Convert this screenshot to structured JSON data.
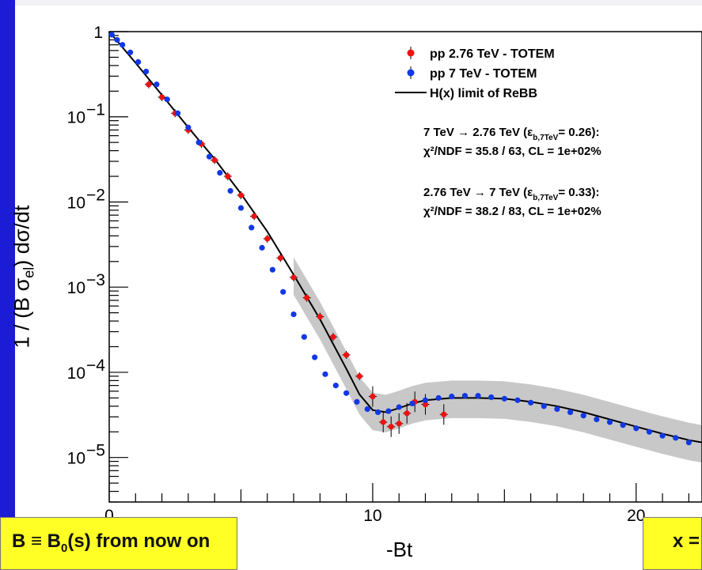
{
  "colors": {
    "slide_bar": "#1c1cd6",
    "note_bg": "#ffff26",
    "series_red": "#ee1111",
    "series_blue": "#1238e6",
    "band_gray": "#c8c8c8"
  },
  "annotations": {
    "b_definition": "B  ≡ B",
    "b_sub": "0",
    "b_rest": "(s)  from now on",
    "x_def": "x ="
  },
  "chart_data": {
    "type": "scatter",
    "ylabel_main": "1 / (B σ",
    "ylabel_sub": "el",
    "ylabel_end": ")  dσ/dt",
    "xlabel": "-Bt",
    "x_scale": "linear",
    "y_scale": "log",
    "xlim": [
      0,
      22.5
    ],
    "ylim": [
      3e-06,
      1
    ],
    "x_ticks": [
      {
        "value": 0,
        "label": "0"
      },
      {
        "value": 10,
        "label": "10"
      },
      {
        "value": 20,
        "label": "20"
      }
    ],
    "y_ticks": [
      {
        "value": 1,
        "label": "1"
      },
      {
        "value": 0.1,
        "label": "10",
        "exp": "−1"
      },
      {
        "value": 0.01,
        "label": "10",
        "exp": "−2"
      },
      {
        "value": 0.001,
        "label": "10",
        "exp": "−3"
      },
      {
        "value": 0.0001,
        "label": "10",
        "exp": "−4"
      },
      {
        "value": 1e-05,
        "label": "10",
        "exp": "−5"
      }
    ],
    "legend": [
      {
        "label": "pp 2.76 TeV - TOTEM",
        "color": "#ee1111",
        "marker": "point"
      },
      {
        "label": "pp 7 TeV - TOTEM",
        "color": "#1238e6",
        "marker": "point"
      },
      {
        "label": "H(x) limit of ReBB",
        "color": "#000000",
        "marker": "line"
      }
    ],
    "fit_text": [
      {
        "line1_a": "7 TeV → 2.76 TeV  (ε",
        "line1_sub": "b,7TeV",
        "line1_b": "= 0.26):",
        "line2": "χ²/NDF = 35.8 / 63,  CL = 1e+02%"
      },
      {
        "line1_a": "2.76 TeV → 7 TeV  (ε",
        "line1_sub": "b,7TeV",
        "line1_b": "= 0.33):",
        "line2": "χ²/NDF = 38.2 / 83,  CL = 1e+02%"
      }
    ],
    "curve": {
      "name": "H(x) limit of ReBB",
      "x": [
        0,
        1,
        2,
        3,
        4,
        5,
        6,
        7,
        8,
        9,
        9.5,
        10,
        10.5,
        11,
        11.5,
        12,
        13,
        14,
        15,
        16,
        17,
        18,
        19,
        20,
        21,
        22,
        22.5
      ],
      "y": [
        1.0,
        0.43,
        0.18,
        0.075,
        0.032,
        0.0125,
        0.0045,
        0.0014,
        0.00042,
        0.00011,
        5.5e-05,
        3.6e-05,
        3.4e-05,
        3.8e-05,
        4.3e-05,
        4.7e-05,
        5e-05,
        5e-05,
        4.9e-05,
        4.5e-05,
        4e-05,
        3.4e-05,
        2.8e-05,
        2.3e-05,
        1.9e-05,
        1.6e-05,
        1.5e-05
      ]
    },
    "band_relative_width": 0.6,
    "series": [
      {
        "name": "pp 2.76 TeV - TOTEM",
        "color": "#ee1111",
        "x": [
          1.5,
          2.0,
          2.5,
          3.0,
          3.5,
          4.0,
          4.5,
          5.0,
          5.5,
          6.0,
          6.5,
          7.0,
          7.5,
          8.0,
          8.5,
          9.0,
          9.5,
          10.0,
          10.4,
          10.7,
          11.0,
          11.3,
          11.6,
          12.0,
          12.7
        ],
        "y": [
          0.24,
          0.17,
          0.11,
          0.07,
          0.048,
          0.031,
          0.02,
          0.012,
          0.0068,
          0.0037,
          0.0022,
          0.0013,
          0.00075,
          0.00045,
          0.00026,
          0.00016,
          9e-05,
          5.2e-05,
          2.6e-05,
          2.3e-05,
          2.5e-05,
          3.3e-05,
          4.5e-05,
          4.2e-05,
          3.2e-05
        ]
      },
      {
        "name": "pp 7 TeV - TOTEM",
        "color": "#1238e6",
        "x": [
          0.1,
          0.3,
          0.5,
          0.8,
          1.1,
          1.4,
          1.8,
          2.2,
          2.6,
          3.0,
          3.4,
          3.8,
          4.2,
          4.6,
          5.0,
          5.4,
          5.8,
          6.2,
          6.6,
          7.0,
          7.4,
          7.8,
          8.2,
          8.6,
          9.0,
          9.4,
          9.8,
          10.2,
          10.6,
          11.0,
          11.5,
          12.0,
          12.5,
          13.0,
          13.5,
          14.0,
          14.5,
          15.0,
          15.5,
          16.0,
          16.5,
          17.0,
          17.5,
          18.0,
          18.5,
          19.0,
          19.5,
          20.0,
          20.5,
          21.0,
          21.5,
          22.0
        ],
        "y": [
          0.92,
          0.8,
          0.7,
          0.57,
          0.44,
          0.34,
          0.24,
          0.16,
          0.11,
          0.075,
          0.05,
          0.034,
          0.022,
          0.0135,
          0.0085,
          0.005,
          0.0029,
          0.0016,
          0.00088,
          0.00048,
          0.00026,
          0.00015,
          9.5e-05,
          7e-05,
          5.7e-05,
          4.5e-05,
          3.7e-05,
          3.4e-05,
          3.5e-05,
          3.9e-05,
          4.3e-05,
          4.7e-05,
          5e-05,
          5.2e-05,
          5.3e-05,
          5.3e-05,
          5.1e-05,
          4.9e-05,
          4.7e-05,
          4.4e-05,
          4e-05,
          3.7e-05,
          3.4e-05,
          3.1e-05,
          2.8e-05,
          2.6e-05,
          2.4e-05,
          2.2e-05,
          2e-05,
          1.8e-05,
          1.7e-05,
          1.5e-05
        ]
      }
    ]
  }
}
